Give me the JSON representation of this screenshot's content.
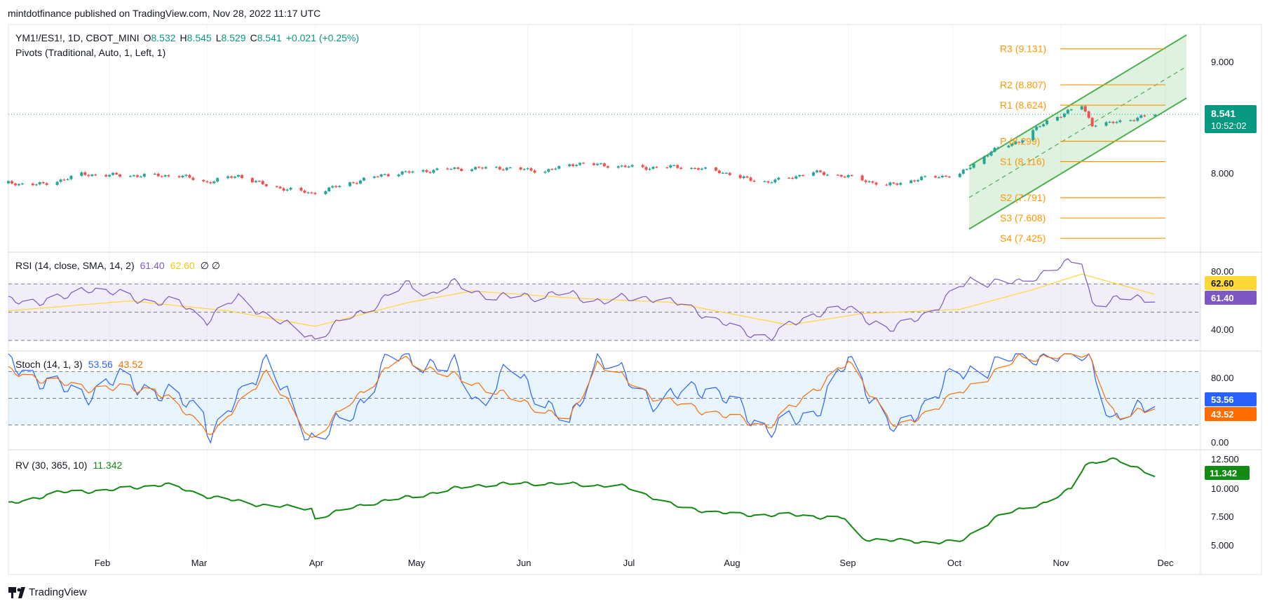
{
  "header": {
    "published": "mintdotfinance published on TradingView.com, Nov 28, 2022 11:17 UTC"
  },
  "footer": {
    "brand": "TradingView"
  },
  "colors": {
    "up": "#26a69a",
    "down": "#ef5350",
    "pivot": "#ff9800",
    "channel": "#4caf50",
    "rsi": "#7e57c2",
    "rsi_ma": "#fdd835",
    "stoch_k": "#2962ff",
    "stoch_d": "#ff6d00",
    "rv": "#138a14"
  },
  "price_pane": {
    "symbol": "YM1!/ES1!, 1D, CBOT_MINI",
    "o_label": "O",
    "o_value": "8.532",
    "h_label": "H",
    "h_value": "8.545",
    "l_label": "L",
    "l_value": "8.529",
    "c_label": "C",
    "c_value": "8.541",
    "change": "+0.021 (+0.25%)",
    "pivots_label": "Pivots (Traditional, Auto, 1, Left, 1)",
    "last_price": "8.541",
    "countdown": "10:52:02",
    "axis_ticks": [
      "9.000",
      "8.000"
    ]
  },
  "pivots": [
    {
      "label": "R3 (9.131)",
      "value": 9.131
    },
    {
      "label": "R2 (8.807)",
      "value": 8.807
    },
    {
      "label": "R1 (8.624)",
      "value": 8.624
    },
    {
      "label": "P (8.299)",
      "value": 8.299
    },
    {
      "label": "S1 (8.116)",
      "value": 8.116
    },
    {
      "label": "S2 (7.791)",
      "value": 7.791
    },
    {
      "label": "S3 (7.608)",
      "value": 7.608
    },
    {
      "label": "S4 (7.425)",
      "value": 7.425
    }
  ],
  "rsi_pane": {
    "label": "RSI (14, close, SMA, 14, 2)",
    "v1": "61.40",
    "v2": "62.60",
    "tail": "∅  ∅",
    "axis_ticks": [
      "80.00",
      "40.00"
    ]
  },
  "stoch_pane": {
    "label": "Stoch (14, 1, 3)",
    "v1": "53.56",
    "v2": "43.52",
    "axis_ticks": [
      "80.00",
      "0.00"
    ]
  },
  "rv_pane": {
    "label": "RV (30, 365, 10)",
    "v1": "11.342",
    "axis_ticks": [
      "12.500",
      "10.000",
      "7.500",
      "5.000"
    ]
  },
  "x_axis": [
    "Feb",
    "Mar",
    "Apr",
    "May",
    "Jun",
    "Jul",
    "Aug",
    "Sep",
    "Oct",
    "Nov",
    "Dec"
  ],
  "chart_data": [
    {
      "type": "candlestick",
      "title": "YM1!/ES1!, 1D, CBOT_MINI",
      "x_range": [
        "2022-01-03",
        "2022-11-28"
      ],
      "ylim": [
        7.3,
        9.35
      ],
      "close_points": [
        [
          "2022-01-03",
          7.92
        ],
        [
          "2022-01-13",
          7.91
        ],
        [
          "2022-01-24",
          8.0
        ],
        [
          "2022-02-07",
          7.99
        ],
        [
          "2022-02-21",
          7.99
        ],
        [
          "2022-03-01",
          7.93
        ],
        [
          "2022-03-10",
          7.99
        ],
        [
          "2022-03-18",
          7.9
        ],
        [
          "2022-03-31",
          7.83
        ],
        [
          "2022-04-12",
          7.93
        ],
        [
          "2022-04-21",
          8.0
        ],
        [
          "2022-04-28",
          8.02
        ],
        [
          "2022-05-10",
          8.05
        ],
        [
          "2022-05-24",
          8.06
        ],
        [
          "2022-06-06",
          8.03
        ],
        [
          "2022-06-15",
          8.1
        ],
        [
          "2022-06-24",
          8.08
        ],
        [
          "2022-07-05",
          8.06
        ],
        [
          "2022-07-14",
          8.07
        ],
        [
          "2022-07-26",
          8.03
        ],
        [
          "2022-08-01",
          7.97
        ],
        [
          "2022-08-09",
          7.93
        ],
        [
          "2022-08-22",
          8.02
        ],
        [
          "2022-09-01",
          7.98
        ],
        [
          "2022-09-12",
          7.9
        ],
        [
          "2022-09-23",
          7.97
        ],
        [
          "2022-10-03",
          8.0
        ],
        [
          "2022-10-12",
          8.21
        ],
        [
          "2022-10-20",
          8.3
        ],
        [
          "2022-10-28",
          8.48
        ],
        [
          "2022-11-07",
          8.62
        ],
        [
          "2022-11-10",
          8.45
        ],
        [
          "2022-11-15",
          8.46
        ],
        [
          "2022-11-28",
          8.54
        ]
      ]
    },
    {
      "type": "line",
      "title": "RSI (14, close, SMA, 14, 2)",
      "ylim": [
        25,
        90
      ],
      "bands": [
        70,
        50,
        30
      ],
      "series": [
        {
          "name": "RSI",
          "points": [
            [
              "2022-01-03",
              57
            ],
            [
              "2022-01-20",
              60
            ],
            [
              "2022-01-26",
              68
            ],
            [
              "2022-02-07",
              60
            ],
            [
              "2022-02-21",
              56
            ],
            [
              "2022-03-01",
              45
            ],
            [
              "2022-03-10",
              60
            ],
            [
              "2022-03-24",
              40
            ],
            [
              "2022-04-01",
              32
            ],
            [
              "2022-04-14",
              50
            ],
            [
              "2022-04-28",
              70
            ],
            [
              "2022-05-04",
              63
            ],
            [
              "2022-05-10",
              70
            ],
            [
              "2022-05-24",
              60
            ],
            [
              "2022-06-09",
              63
            ],
            [
              "2022-06-24",
              58
            ],
            [
              "2022-07-07",
              61
            ],
            [
              "2022-07-21",
              50
            ],
            [
              "2022-08-01",
              36
            ],
            [
              "2022-08-10",
              33
            ],
            [
              "2022-08-24",
              51
            ],
            [
              "2022-09-01",
              52
            ],
            [
              "2022-09-14",
              37
            ],
            [
              "2022-09-27",
              55
            ],
            [
              "2022-10-06",
              73
            ],
            [
              "2022-10-20",
              70
            ],
            [
              "2022-10-28",
              80
            ],
            [
              "2022-11-07",
              86
            ],
            [
              "2022-11-10",
              57
            ],
            [
              "2022-11-16",
              58
            ],
            [
              "2022-11-28",
              61.4
            ]
          ]
        },
        {
          "name": "MA",
          "points": [
            [
              "2022-01-03",
              51
            ],
            [
              "2022-02-07",
              58
            ],
            [
              "2022-03-07",
              51
            ],
            [
              "2022-04-01",
              40
            ],
            [
              "2022-04-28",
              57
            ],
            [
              "2022-05-16",
              65
            ],
            [
              "2022-06-14",
              60
            ],
            [
              "2022-07-12",
              57
            ],
            [
              "2022-08-15",
              41
            ],
            [
              "2022-09-05",
              49
            ],
            [
              "2022-10-03",
              52
            ],
            [
              "2022-10-24",
              66
            ],
            [
              "2022-11-07",
              77
            ],
            [
              "2022-11-28",
              62.6
            ]
          ]
        }
      ]
    },
    {
      "type": "line",
      "title": "Stoch (14, 1, 3)",
      "ylim": [
        0,
        100
      ],
      "bands": [
        80,
        50,
        20
      ],
      "series": [
        {
          "name": "%K",
          "points": [
            [
              "2022-01-03",
              88
            ],
            [
              "2022-01-24",
              52
            ],
            [
              "2022-02-03",
              72
            ],
            [
              "2022-02-14",
              58
            ],
            [
              "2022-02-28",
              38
            ],
            [
              "2022-03-02",
              5
            ],
            [
              "2022-03-18",
              95
            ],
            [
              "2022-03-30",
              5
            ],
            [
              "2022-04-12",
              30
            ],
            [
              "2022-04-22",
              98
            ],
            [
              "2022-05-11",
              85
            ],
            [
              "2022-05-18",
              45
            ],
            [
              "2022-05-27",
              85
            ],
            [
              "2022-06-13",
              18
            ],
            [
              "2022-06-21",
              98
            ],
            [
              "2022-07-08",
              45
            ],
            [
              "2022-07-22",
              65
            ],
            [
              "2022-08-09",
              15
            ],
            [
              "2022-08-22",
              32
            ],
            [
              "2022-09-01",
              92
            ],
            [
              "2022-09-15",
              10
            ],
            [
              "2022-09-29",
              70
            ],
            [
              "2022-10-20",
              98
            ],
            [
              "2022-11-09",
              100
            ],
            [
              "2022-11-16",
              20
            ],
            [
              "2022-11-28",
              53.56
            ]
          ]
        },
        {
          "name": "%D",
          "points": [
            [
              "2022-01-03",
              80
            ],
            [
              "2022-01-24",
              62
            ],
            [
              "2022-02-14",
              60
            ],
            [
              "2022-03-03",
              10
            ],
            [
              "2022-03-18",
              80
            ],
            [
              "2022-03-31",
              4
            ],
            [
              "2022-04-25",
              95
            ],
            [
              "2022-05-18",
              65
            ],
            [
              "2022-06-13",
              25
            ],
            [
              "2022-06-21",
              90
            ],
            [
              "2022-07-08",
              50
            ],
            [
              "2022-08-09",
              18
            ],
            [
              "2022-09-01",
              90
            ],
            [
              "2022-09-15",
              15
            ],
            [
              "2022-10-20",
              95
            ],
            [
              "2022-11-09",
              100
            ],
            [
              "2022-11-17",
              25
            ],
            [
              "2022-11-28",
              43.52
            ]
          ]
        }
      ]
    },
    {
      "type": "line",
      "title": "RV (30, 365, 10)",
      "ylim": [
        4.5,
        13.2
      ],
      "series": [
        {
          "name": "RV",
          "points": [
            [
              "2022-01-03",
              8.8
            ],
            [
              "2022-01-17",
              9.8
            ],
            [
              "2022-02-01",
              10.0
            ],
            [
              "2022-02-17",
              10.5
            ],
            [
              "2022-03-01",
              9.5
            ],
            [
              "2022-03-15",
              8.8
            ],
            [
              "2022-03-31",
              8.4
            ],
            [
              "2022-04-01",
              7.6
            ],
            [
              "2022-04-15",
              8.8
            ],
            [
              "2022-05-02",
              9.6
            ],
            [
              "2022-05-16",
              10.4
            ],
            [
              "2022-06-01",
              10.6
            ],
            [
              "2022-06-15",
              10.5
            ],
            [
              "2022-06-29",
              10.3
            ],
            [
              "2022-07-15",
              8.5
            ],
            [
              "2022-08-01",
              7.9
            ],
            [
              "2022-08-15",
              7.9
            ],
            [
              "2022-08-31",
              7.6
            ],
            [
              "2022-09-04",
              5.9
            ],
            [
              "2022-09-21",
              5.6
            ],
            [
              "2022-10-03",
              5.6
            ],
            [
              "2022-10-14",
              7.8
            ],
            [
              "2022-10-28",
              9.0
            ],
            [
              "2022-11-04",
              10.1
            ],
            [
              "2022-11-08",
              12.2
            ],
            [
              "2022-11-15",
              12.7
            ],
            [
              "2022-11-28",
              11.342
            ]
          ]
        }
      ]
    }
  ]
}
